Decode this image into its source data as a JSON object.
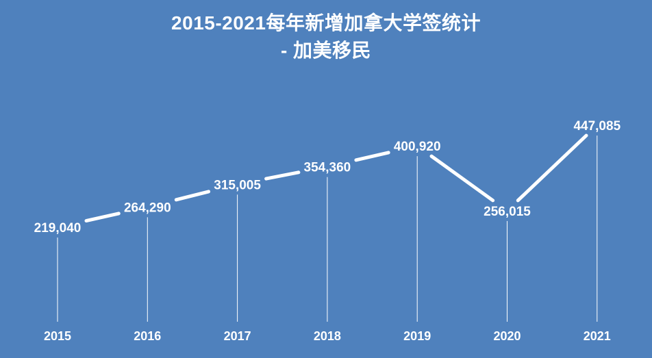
{
  "chart_data": {
    "type": "line",
    "title_lines": [
      "2015-2021每年新增加拿大学签统计",
      "- 加美移民"
    ],
    "categories": [
      "2015",
      "2016",
      "2017",
      "2018",
      "2019",
      "2020",
      "2021"
    ],
    "series": [
      {
        "values": [
          219040,
          264290,
          315005,
          354360,
          400920,
          256015,
          447085
        ],
        "labels": [
          "219,040",
          "264,290",
          "315,005",
          "354,360",
          "400,920",
          "256,015",
          "447,085"
        ]
      }
    ],
    "line_color": "#ffffff",
    "background_color": "#4f81bd",
    "drop_lines": true,
    "grid": false,
    "legend": "none"
  }
}
